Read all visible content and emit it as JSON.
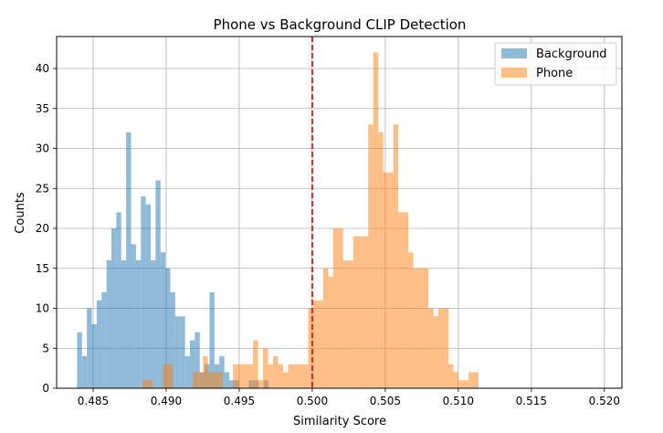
{
  "chart_data": {
    "type": "histogram",
    "title": "Phone vs Background CLIP Detection",
    "xlabel": "Similarity Score",
    "ylabel": "Counts",
    "xlim": [
      0.4825,
      0.5212
    ],
    "ylim": [
      0,
      44
    ],
    "grid": true,
    "legend_position": "top-right",
    "x_ticks": [
      {
        "value": 0.485,
        "label": "0.485"
      },
      {
        "value": 0.49,
        "label": "0.490"
      },
      {
        "value": 0.495,
        "label": "0.495"
      },
      {
        "value": 0.5,
        "label": "0.500"
      },
      {
        "value": 0.505,
        "label": "0.505"
      },
      {
        "value": 0.51,
        "label": "0.510"
      },
      {
        "value": 0.515,
        "label": "0.515"
      },
      {
        "value": 0.52,
        "label": "0.520"
      }
    ],
    "y_ticks": [
      {
        "value": 0,
        "label": "0"
      },
      {
        "value": 5,
        "label": "5"
      },
      {
        "value": 10,
        "label": "10"
      },
      {
        "value": 15,
        "label": "15"
      },
      {
        "value": 20,
        "label": "20"
      },
      {
        "value": 25,
        "label": "25"
      },
      {
        "value": 30,
        "label": "30"
      },
      {
        "value": 35,
        "label": "35"
      },
      {
        "value": 40,
        "label": "40"
      }
    ],
    "threshold": {
      "x": 0.5,
      "color": "#d62728"
    },
    "series": [
      {
        "name": "Background",
        "color": "#1f77b4",
        "opacity": 0.5,
        "bin_start": 0.4839,
        "bin_width": 0.000336,
        "counts": [
          7,
          4,
          10,
          8,
          11,
          12,
          16,
          20,
          22,
          16,
          32,
          18,
          16,
          24,
          23,
          16,
          26,
          17,
          15,
          12,
          9,
          9,
          4,
          6,
          7,
          2,
          3,
          12,
          3,
          4,
          2,
          1,
          1,
          0,
          0,
          1,
          1,
          0,
          1
        ]
      },
      {
        "name": "Phone",
        "color": "#ff7f0e",
        "opacity": 0.5,
        "bin_start": 0.4884,
        "bin_width": 0.000343,
        "counts": [
          1,
          1,
          0,
          0,
          3,
          3,
          0,
          0,
          0,
          0,
          2,
          2,
          4,
          2,
          2,
          2,
          0,
          0,
          3,
          3,
          3,
          3,
          6,
          1,
          5,
          3,
          4,
          3,
          2,
          3,
          3,
          3,
          3,
          10,
          11,
          11,
          15,
          14,
          20,
          20,
          16,
          16,
          19,
          19,
          19,
          33,
          42,
          32,
          27,
          27,
          33,
          22,
          22,
          17,
          15,
          15,
          15,
          10,
          9,
          10,
          10,
          3,
          2,
          1,
          1,
          2,
          2
        ]
      }
    ]
  }
}
